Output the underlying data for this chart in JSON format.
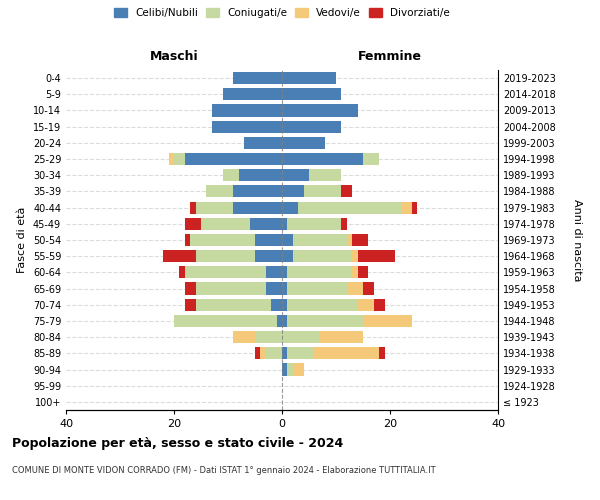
{
  "age_groups": [
    "100+",
    "95-99",
    "90-94",
    "85-89",
    "80-84",
    "75-79",
    "70-74",
    "65-69",
    "60-64",
    "55-59",
    "50-54",
    "45-49",
    "40-44",
    "35-39",
    "30-34",
    "25-29",
    "20-24",
    "15-19",
    "10-14",
    "5-9",
    "0-4"
  ],
  "birth_years": [
    "≤ 1923",
    "1924-1928",
    "1929-1933",
    "1934-1938",
    "1939-1943",
    "1944-1948",
    "1949-1953",
    "1954-1958",
    "1959-1963",
    "1964-1968",
    "1969-1973",
    "1974-1978",
    "1979-1983",
    "1984-1988",
    "1989-1993",
    "1994-1998",
    "1999-2003",
    "2004-2008",
    "2009-2013",
    "2014-2018",
    "2019-2023"
  ],
  "male": {
    "celibi": [
      0,
      0,
      0,
      0,
      0,
      1,
      2,
      3,
      3,
      5,
      5,
      6,
      9,
      9,
      8,
      18,
      7,
      13,
      13,
      11,
      9
    ],
    "coniugati": [
      0,
      0,
      0,
      3,
      5,
      19,
      14,
      13,
      15,
      11,
      12,
      9,
      7,
      5,
      3,
      2,
      0,
      0,
      0,
      0,
      0
    ],
    "vedovi": [
      0,
      0,
      0,
      1,
      4,
      0,
      0,
      0,
      0,
      0,
      0,
      0,
      0,
      0,
      0,
      1,
      0,
      0,
      0,
      0,
      0
    ],
    "divorziati": [
      0,
      0,
      0,
      1,
      0,
      0,
      2,
      2,
      1,
      6,
      1,
      3,
      1,
      0,
      0,
      0,
      0,
      0,
      0,
      0,
      0
    ]
  },
  "female": {
    "nubili": [
      0,
      0,
      1,
      1,
      0,
      1,
      1,
      1,
      1,
      2,
      2,
      1,
      3,
      4,
      5,
      15,
      8,
      11,
      14,
      11,
      10
    ],
    "coniugate": [
      0,
      0,
      1,
      5,
      7,
      14,
      13,
      11,
      12,
      11,
      10,
      10,
      19,
      7,
      6,
      3,
      0,
      0,
      0,
      0,
      0
    ],
    "vedove": [
      0,
      0,
      2,
      12,
      8,
      9,
      3,
      3,
      1,
      1,
      1,
      0,
      2,
      0,
      0,
      0,
      0,
      0,
      0,
      0,
      0
    ],
    "divorziate": [
      0,
      0,
      0,
      1,
      0,
      0,
      2,
      2,
      2,
      7,
      3,
      1,
      1,
      2,
      0,
      0,
      0,
      0,
      0,
      0,
      0
    ]
  },
  "colors": {
    "celibi": "#4a7fb5",
    "coniugati": "#c5d9a0",
    "vedovi": "#f5c97a",
    "divorziati": "#cc2222"
  },
  "xlim": 40,
  "title": "Popolazione per età, sesso e stato civile - 2024",
  "subtitle": "COMUNE DI MONTE VIDON CORRADO (FM) - Dati ISTAT 1° gennaio 2024 - Elaborazione TUTTITALIA.IT",
  "ylabel_left": "Fasce di età",
  "ylabel_right": "Anni di nascita",
  "legend_labels": [
    "Celibi/Nubili",
    "Coniugati/e",
    "Vedovi/e",
    "Divorziati/e"
  ]
}
